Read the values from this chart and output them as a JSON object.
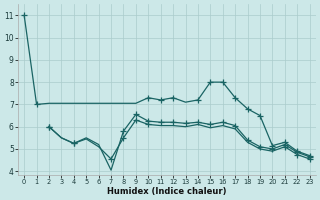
{
  "xlabel": "Humidex (Indice chaleur)",
  "background_color": "#cce8e8",
  "grid_color": "#aacccc",
  "line_color": "#1a6464",
  "x_ticks": [
    0,
    1,
    2,
    3,
    4,
    5,
    6,
    7,
    8,
    9,
    10,
    11,
    12,
    13,
    14,
    15,
    16,
    17,
    18,
    19,
    20,
    21,
    22,
    23
  ],
  "line1_x": [
    0,
    1,
    2,
    3,
    4,
    5,
    6,
    7,
    8,
    9,
    10,
    11,
    12,
    13,
    14,
    15,
    16,
    17,
    18,
    19,
    20,
    21,
    22,
    23
  ],
  "line1_y": [
    11.0,
    7.0,
    7.05,
    7.05,
    7.05,
    7.05,
    7.05,
    7.05,
    7.05,
    7.05,
    7.3,
    7.2,
    7.3,
    7.1,
    7.2,
    8.0,
    8.0,
    7.3,
    6.8,
    6.5,
    5.15,
    5.3,
    4.9,
    4.7
  ],
  "line1_mark": [
    0,
    1,
    10,
    11,
    12,
    14,
    15,
    16,
    17,
    18,
    19,
    20,
    21,
    22,
    23
  ],
  "line2_x": [
    2,
    3,
    4,
    5,
    6,
    7,
    8,
    9,
    10,
    11,
    12,
    13,
    14,
    15,
    16,
    17,
    18,
    19,
    20,
    21,
    22,
    23
  ],
  "line2_y": [
    6.0,
    5.5,
    5.25,
    5.5,
    5.2,
    4.05,
    5.8,
    6.55,
    6.25,
    6.2,
    6.2,
    6.15,
    6.2,
    6.1,
    6.2,
    6.05,
    5.4,
    5.1,
    5.0,
    5.2,
    4.85,
    4.65
  ],
  "line2_mark": [
    0,
    2,
    6,
    7,
    8,
    9,
    10,
    11,
    12,
    13,
    14,
    15,
    16,
    17,
    18,
    19,
    20,
    21
  ],
  "line3_x": [
    2,
    3,
    4,
    5,
    6,
    7,
    8,
    9,
    10,
    11,
    12,
    13,
    14,
    15,
    16,
    17,
    18,
    19,
    20,
    21,
    22,
    23
  ],
  "line3_y": [
    6.0,
    5.5,
    5.25,
    5.45,
    5.1,
    4.55,
    5.5,
    6.3,
    6.1,
    6.05,
    6.05,
    6.0,
    6.1,
    5.95,
    6.05,
    5.9,
    5.3,
    5.0,
    4.9,
    5.1,
    4.75,
    4.55
  ],
  "line3_mark": [
    0,
    2,
    5,
    6,
    7,
    8,
    19,
    20,
    21
  ],
  "ylim": [
    3.85,
    11.5
  ],
  "yticks": [
    4,
    5,
    6,
    7,
    8,
    9,
    10,
    11
  ]
}
